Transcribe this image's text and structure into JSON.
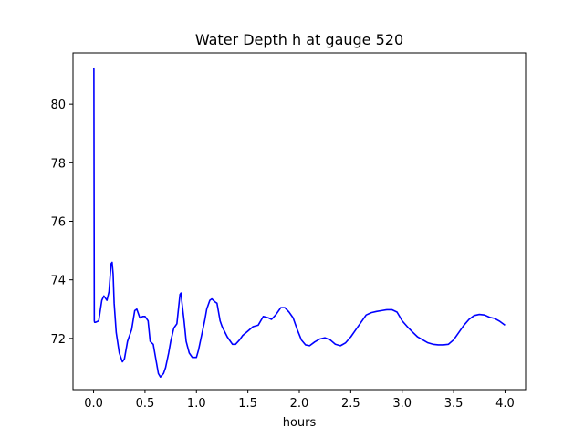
{
  "chart_data": {
    "type": "line",
    "title": "Water Depth h at gauge 520",
    "xlabel": "hours",
    "ylabel": "",
    "xlim": [
      -0.2,
      4.2
    ],
    "ylim": [
      70.25,
      81.75
    ],
    "xticks": [
      0.0,
      0.5,
      1.0,
      1.5,
      2.0,
      2.5,
      3.0,
      3.5,
      4.0
    ],
    "xtick_labels": [
      "0.0",
      "0.5",
      "1.0",
      "1.5",
      "2.0",
      "2.5",
      "3.0",
      "3.5",
      "4.0"
    ],
    "yticks": [
      72,
      74,
      76,
      78,
      80
    ],
    "ytick_labels": [
      "72",
      "74",
      "76",
      "78",
      "80"
    ],
    "grid": false,
    "series": [
      {
        "color": "#0000ff",
        "x": [
          0.0,
          0.003,
          0.007,
          0.01,
          0.02,
          0.05,
          0.08,
          0.1,
          0.13,
          0.15,
          0.17,
          0.18,
          0.19,
          0.2,
          0.22,
          0.25,
          0.28,
          0.3,
          0.33,
          0.37,
          0.4,
          0.42,
          0.45,
          0.48,
          0.5,
          0.53,
          0.55,
          0.58,
          0.6,
          0.63,
          0.65,
          0.68,
          0.7,
          0.73,
          0.75,
          0.78,
          0.81,
          0.84,
          0.85,
          0.86,
          0.88,
          0.9,
          0.93,
          0.96,
          1.0,
          1.02,
          1.05,
          1.08,
          1.1,
          1.13,
          1.15,
          1.18,
          1.2,
          1.23,
          1.25,
          1.3,
          1.35,
          1.38,
          1.42,
          1.45,
          1.5,
          1.55,
          1.6,
          1.65,
          1.7,
          1.73,
          1.77,
          1.82,
          1.86,
          1.9,
          1.94,
          1.98,
          2.02,
          2.06,
          2.1,
          2.15,
          2.2,
          2.25,
          2.3,
          2.35,
          2.4,
          2.45,
          2.5,
          2.55,
          2.6,
          2.65,
          2.7,
          2.75,
          2.8,
          2.85,
          2.9,
          2.95,
          3.0,
          3.05,
          3.1,
          3.15,
          3.2,
          3.25,
          3.3,
          3.35,
          3.4,
          3.45,
          3.5,
          3.55,
          3.6,
          3.65,
          3.7,
          3.75,
          3.8,
          3.85,
          3.9,
          3.95,
          4.0
        ],
        "y": [
          81.25,
          81.2,
          72.6,
          72.55,
          72.55,
          72.6,
          73.3,
          73.45,
          73.3,
          73.6,
          74.55,
          74.6,
          74.2,
          73.2,
          72.2,
          71.5,
          71.2,
          71.3,
          71.9,
          72.3,
          72.95,
          73.0,
          72.7,
          72.75,
          72.75,
          72.6,
          71.9,
          71.8,
          71.4,
          70.8,
          70.68,
          70.8,
          71.0,
          71.5,
          71.9,
          72.35,
          72.5,
          73.5,
          73.55,
          73.2,
          72.6,
          71.9,
          71.5,
          71.35,
          71.35,
          71.6,
          72.1,
          72.6,
          73.0,
          73.3,
          73.35,
          73.25,
          73.2,
          72.6,
          72.4,
          72.05,
          71.8,
          71.8,
          71.95,
          72.1,
          72.25,
          72.4,
          72.45,
          72.75,
          72.7,
          72.65,
          72.8,
          73.05,
          73.05,
          72.9,
          72.7,
          72.3,
          71.95,
          71.78,
          71.75,
          71.88,
          71.98,
          72.02,
          71.95,
          71.8,
          71.75,
          71.85,
          72.05,
          72.3,
          72.55,
          72.8,
          72.88,
          72.92,
          72.95,
          72.98,
          72.98,
          72.9,
          72.6,
          72.4,
          72.22,
          72.05,
          71.95,
          71.85,
          71.8,
          71.78,
          71.78,
          71.8,
          71.95,
          72.2,
          72.45,
          72.65,
          72.78,
          72.82,
          72.8,
          72.72,
          72.68,
          72.58,
          72.45
        ]
      }
    ]
  }
}
